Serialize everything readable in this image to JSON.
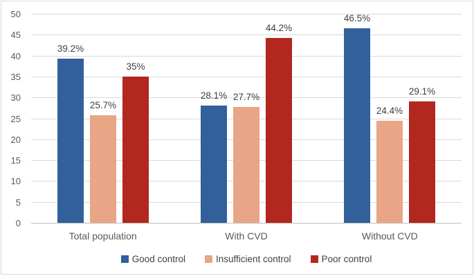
{
  "chart_data": {
    "type": "bar",
    "title": "",
    "xlabel": "",
    "ylabel": "",
    "categories": [
      "Total population",
      "With CVD",
      "Without CVD"
    ],
    "series": [
      {
        "name": "Good control",
        "color": "#31609B",
        "values": [
          39.2,
          28.1,
          46.5
        ],
        "data_labels": [
          "39.2%",
          "28.1%",
          "46.5%"
        ]
      },
      {
        "name": "Insufficient control",
        "color": "#E9A687",
        "values": [
          25.7,
          27.7,
          24.4
        ],
        "data_labels": [
          "25.7%",
          "27.7%",
          "24.4%"
        ]
      },
      {
        "name": "Poor control",
        "color": "#B2271E",
        "values": [
          35,
          44.2,
          29.1
        ],
        "data_labels": [
          "35%",
          "44.2%",
          "29.1%"
        ]
      }
    ],
    "ylim": [
      0,
      50
    ],
    "ytick_step": 5,
    "ytick_labels": [
      "0",
      "5",
      "10",
      "15",
      "20",
      "25",
      "30",
      "35",
      "40",
      "45",
      "50"
    ],
    "grid": true,
    "legend_position": "bottom"
  },
  "colors": {
    "background": "#FFFFFF",
    "border": "#D8D8D8",
    "gridline": "#D9D9D9",
    "axis_line": "#BFBFBF",
    "tick_label": "#595959",
    "category_label": "#595959",
    "data_label": "#404040",
    "legend_text": "#404040"
  }
}
